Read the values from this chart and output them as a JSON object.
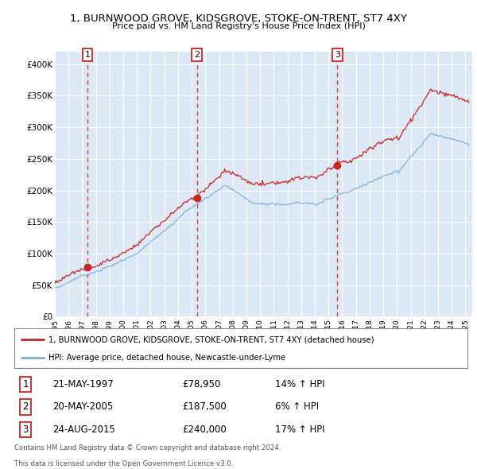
{
  "title": "1, BURNWOOD GROVE, KIDSGROVE, STOKE-ON-TRENT, ST7 4XY",
  "subtitle": "Price paid vs. HM Land Registry's House Price Index (HPI)",
  "background_color": "#dce9f5",
  "plot_bg": "#dce9f5",
  "grid_color": "#ffffff",
  "sale_dates_num": [
    1997.38,
    2005.38,
    2015.65
  ],
  "sale_prices": [
    78950,
    187500,
    240000
  ],
  "sale_labels": [
    "1",
    "2",
    "3"
  ],
  "legend_line1": "1, BURNWOOD GROVE, KIDSGROVE, STOKE-ON-TRENT, ST7 4XY (detached house)",
  "legend_line2": "HPI: Average price, detached house, Newcastle-under-Lyme",
  "table_rows": [
    [
      "1",
      "21-MAY-1997",
      "£78,950",
      "14% ↑ HPI"
    ],
    [
      "2",
      "20-MAY-2005",
      "£187,500",
      "6% ↑ HPI"
    ],
    [
      "3",
      "24-AUG-2015",
      "£240,000",
      "17% ↑ HPI"
    ]
  ],
  "footer1": "Contains HM Land Registry data © Crown copyright and database right 2024.",
  "footer2": "This data is licensed under the Open Government Licence v3.0.",
  "hpi_color": "#7aaed6",
  "price_color": "#cc2222",
  "vline_color": "#cc2222",
  "ylim": [
    0,
    420000
  ],
  "yticks": [
    0,
    50000,
    100000,
    150000,
    200000,
    250000,
    300000,
    350000,
    400000
  ],
  "ytick_labels": [
    "£0",
    "£50K",
    "£100K",
    "£150K",
    "£200K",
    "£250K",
    "£300K",
    "£350K",
    "£400K"
  ],
  "xlim": [
    1995.0,
    2025.5
  ],
  "xtick_years": [
    1995,
    1996,
    1997,
    1998,
    1999,
    2000,
    2001,
    2002,
    2003,
    2004,
    2005,
    2006,
    2007,
    2008,
    2009,
    2010,
    2011,
    2012,
    2013,
    2014,
    2015,
    2016,
    2017,
    2018,
    2019,
    2020,
    2021,
    2022,
    2023,
    2024,
    2025
  ]
}
